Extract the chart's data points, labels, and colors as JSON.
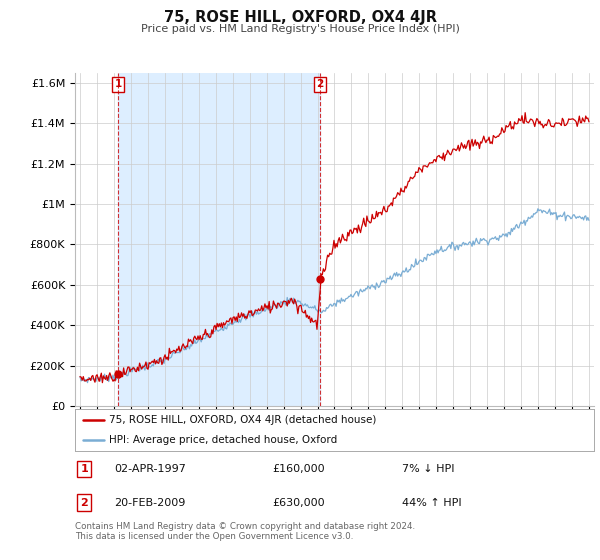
{
  "title": "75, ROSE HILL, OXFORD, OX4 4JR",
  "subtitle": "Price paid vs. HM Land Registry's House Price Index (HPI)",
  "legend_line1": "75, ROSE HILL, OXFORD, OX4 4JR (detached house)",
  "legend_line2": "HPI: Average price, detached house, Oxford",
  "annotation1_label": "1",
  "annotation1_date": "02-APR-1997",
  "annotation1_price": "£160,000",
  "annotation1_hpi": "7% ↓ HPI",
  "annotation2_label": "2",
  "annotation2_date": "20-FEB-2009",
  "annotation2_price": "£630,000",
  "annotation2_hpi": "44% ↑ HPI",
  "footer": "Contains HM Land Registry data © Crown copyright and database right 2024.\nThis data is licensed under the Open Government Licence v3.0.",
  "red_color": "#cc0000",
  "blue_color": "#7aadd4",
  "shade_color": "#ddeeff",
  "grid_color": "#cccccc",
  "background_color": "#ffffff",
  "ylim": [
    0,
    1650000
  ],
  "yticks": [
    0,
    200000,
    400000,
    600000,
    800000,
    1000000,
    1200000,
    1400000,
    1600000
  ],
  "ytick_labels": [
    "£0",
    "£200K",
    "£400K",
    "£600K",
    "£800K",
    "£1M",
    "£1.2M",
    "£1.4M",
    "£1.6M"
  ],
  "xmin": 1994.7,
  "xmax": 2025.3,
  "sale1_x": 1997.25,
  "sale1_y": 160000,
  "sale2_x": 2009.13,
  "sale2_y": 630000
}
